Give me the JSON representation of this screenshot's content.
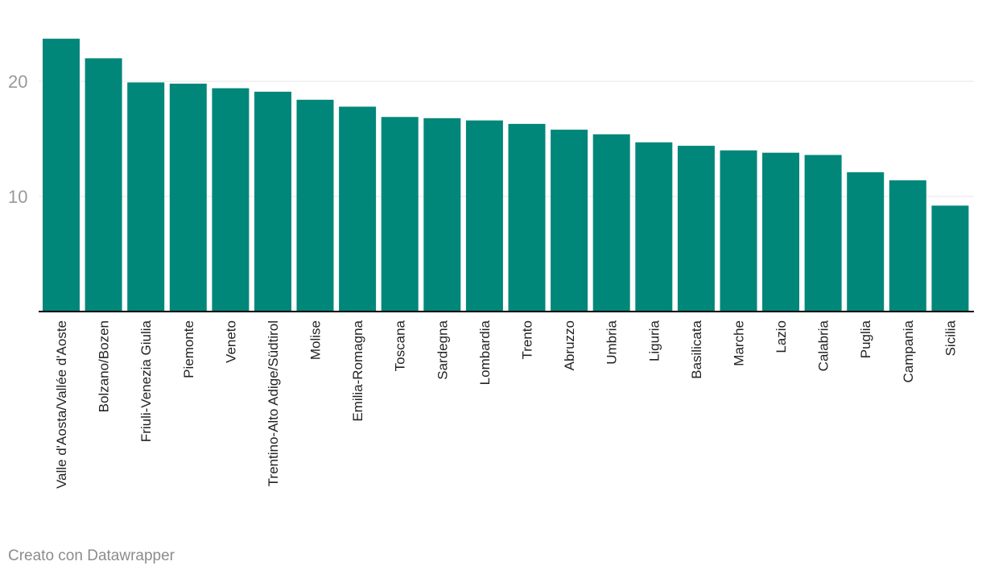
{
  "chart_data": {
    "type": "bar",
    "categories": [
      "Valle d'Aosta/Vallée d'Aoste",
      "Bolzano/Bozen",
      "Friuli-Venezia Giulia",
      "Piemonte",
      "Veneto",
      "Trentino-Alto Adige/Südtirol",
      "Molise",
      "Emilia-Romagna",
      "Toscana",
      "Sardegna",
      "Lombardia",
      "Trento",
      "Abruzzo",
      "Umbria",
      "Liguria",
      "Basilicata",
      "Marche",
      "Lazio",
      "Calabria",
      "Puglia",
      "Campania",
      "Sicilia"
    ],
    "values": [
      23.7,
      22.0,
      19.9,
      19.8,
      19.4,
      19.1,
      18.4,
      17.8,
      16.9,
      16.8,
      16.6,
      16.3,
      15.8,
      15.4,
      14.7,
      14.4,
      14.0,
      13.8,
      13.6,
      12.1,
      11.4,
      9.2
    ],
    "yticks": [
      10,
      20
    ],
    "ylim": [
      0,
      25
    ],
    "title": "",
    "xlabel": "",
    "ylabel": "",
    "grid": true,
    "bar_color": "#00877a"
  },
  "footer": {
    "credit": "Creato con Datawrapper"
  },
  "colors": {
    "grid": "#e6e6e6",
    "axis": "#000000",
    "tick_text": "#999999",
    "label_text": "#222222"
  }
}
